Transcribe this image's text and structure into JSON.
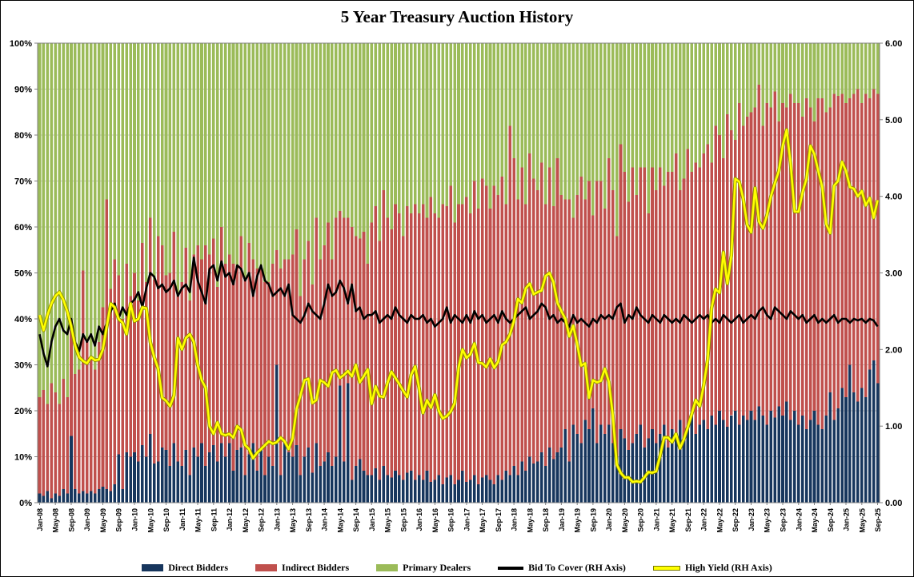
{
  "chart_data": {
    "type": "bar",
    "subtype": "stacked-100-bar-with-lines",
    "title": "5 Year Treasury Auction History",
    "grid": {
      "horizontal": true,
      "color": "#c4c4c4"
    },
    "plot_border_color": "#808080",
    "left_axis": {
      "min": 0,
      "max": 100,
      "tick_step": 10,
      "format": "percent",
      "tick_labels": [
        "0%",
        "10%",
        "20%",
        "30%",
        "40%",
        "50%",
        "60%",
        "70%",
        "80%",
        "90%",
        "100%"
      ]
    },
    "right_axis": {
      "min": 0,
      "max": 6,
      "tick_step": 1,
      "format": "2dp",
      "tick_labels": [
        "0.00",
        "1.00",
        "2.00",
        "3.00",
        "4.00",
        "5.00",
        "6.00"
      ]
    },
    "x_axis": {
      "months_count": 213,
      "first_month": "Jan-08",
      "last_month": "Sep-25",
      "tick_every": 4,
      "tick_labels": [
        "Jan-08",
        "May-08",
        "Sep-08",
        "Jan-09",
        "May-09",
        "Sep-09",
        "Jan-10",
        "May-10",
        "Sep-10",
        "Jan-11",
        "May-11",
        "Sep-11",
        "Jan-12",
        "May-12",
        "Sep-12",
        "Jan-13",
        "May-13",
        "Sep-13",
        "Jan-14",
        "May-14",
        "Sep-14",
        "Jan-15",
        "May-15",
        "Sep-15",
        "Jan-16",
        "May-16",
        "Sep-16",
        "Jan-17",
        "May-17",
        "Sep-17",
        "Jan-18",
        "May-18",
        "Sep-18",
        "Jan-19",
        "May-19",
        "Sep-19",
        "Jan-20",
        "May-20",
        "Sep-20",
        "Jan-21",
        "May-21",
        "Sep-21",
        "Jan-22",
        "May-22",
        "Sep-22",
        "Jan-23",
        "May-23",
        "Sep-23",
        "Jan-24",
        "May-24",
        "Sep-24",
        "Jan-25",
        "May-25",
        "Sep-25"
      ]
    },
    "stack_total_percent": 100,
    "series": [
      {
        "name": "Direct Bidders",
        "type": "bar",
        "axis": "left",
        "color": "#17365D",
        "values": [
          2,
          1.5,
          2.5,
          1,
          2,
          1.5,
          3,
          2,
          14.5,
          3,
          2,
          2.5,
          2,
          2.5,
          2,
          3,
          3.5,
          3,
          2.5,
          4,
          10.5,
          3,
          11,
          10,
          11,
          9,
          12.5,
          10,
          15,
          8.5,
          9,
          12,
          11.5,
          8,
          13,
          9,
          8,
          11.5,
          6,
          12,
          10,
          13,
          8,
          11,
          12.5,
          9,
          13,
          10,
          13,
          7,
          11.5,
          12,
          6,
          10.5,
          13,
          7,
          12,
          6,
          10,
          8,
          30,
          6,
          13,
          11,
          10,
          12.5,
          6,
          10,
          12,
          6.5,
          13,
          8,
          9,
          11,
          8,
          10,
          25.5,
          9,
          26,
          5,
          8,
          9.5,
          7,
          6,
          6,
          7.5,
          5,
          8,
          6,
          5.5,
          7,
          6,
          5,
          6.5,
          7,
          5,
          6,
          5,
          7,
          4.5,
          5,
          6,
          4,
          5.5,
          6,
          4,
          5,
          7,
          4.5,
          5,
          6,
          4,
          5.5,
          6,
          5,
          4,
          6,
          5,
          7,
          6,
          8,
          6,
          9,
          7,
          10,
          8.5,
          9,
          11,
          8,
          12,
          9.5,
          11,
          12,
          16,
          9,
          17,
          15,
          13,
          18,
          16,
          20.5,
          13,
          17,
          15,
          17,
          13,
          10,
          16,
          14,
          11.5,
          13,
          15,
          17,
          12,
          14,
          16,
          13,
          15,
          17,
          12,
          16,
          14,
          18,
          13.5,
          16,
          19,
          15,
          17,
          18,
          16,
          19,
          17,
          20,
          18,
          16.5,
          19,
          20,
          17,
          19,
          18,
          20,
          18,
          21,
          19,
          17,
          20,
          18.5,
          21,
          19,
          22,
          18,
          20,
          17,
          19,
          16,
          18,
          20,
          17,
          16,
          19,
          24,
          18,
          20.5,
          25,
          23,
          30,
          24,
          22,
          25,
          23,
          29,
          31,
          26
        ]
      },
      {
        "name": "Indirect Bidders",
        "type": "bar",
        "axis": "left",
        "color": "#C0504D",
        "values": [
          21,
          23,
          19,
          25,
          22,
          20,
          24,
          21,
          23,
          25,
          27,
          48,
          33,
          29,
          27,
          32,
          39,
          63,
          44,
          49,
          39,
          37,
          41,
          35,
          39,
          35,
          44,
          38,
          47,
          40,
          49,
          44,
          38,
          42,
          46,
          36,
          40,
          44,
          38,
          42,
          46,
          40,
          48,
          43,
          45,
          38,
          47,
          42,
          41,
          45,
          40,
          46,
          43,
          46,
          40,
          44,
          39,
          42,
          38,
          44,
          25,
          45,
          40,
          42,
          44,
          47,
          39,
          43,
          45,
          41,
          49,
          45,
          47,
          50,
          45,
          52,
          38,
          53,
          36,
          55,
          50,
          48,
          52,
          46,
          55,
          57,
          52,
          60,
          56,
          54,
          58,
          57,
          53,
          58,
          56,
          60,
          57,
          60,
          55,
          62,
          58,
          56,
          61,
          59,
          63,
          57,
          60,
          58,
          62,
          58,
          64,
          60,
          65,
          63,
          59,
          65,
          61,
          66,
          58,
          76,
          67,
          60,
          64,
          58,
          66,
          62,
          59,
          63,
          57,
          61,
          55,
          64,
          55,
          50,
          57,
          45,
          52,
          58,
          48,
          54,
          42,
          57,
          53,
          49,
          58,
          55,
          48,
          62,
          58,
          54,
          60,
          52,
          56,
          61,
          49,
          57,
          55,
          58,
          52,
          60,
          56,
          62,
          50,
          57,
          61,
          53,
          59,
          56,
          58,
          62,
          55,
          65,
          60,
          57,
          68,
          62,
          59,
          70,
          63,
          66,
          65,
          68,
          70,
          63,
          70,
          66,
          71,
          62,
          68,
          64,
          71,
          67,
          70,
          65,
          72,
          68,
          63,
          71,
          72,
          66,
          62,
          71,
          68,
          64,
          64,
          58,
          65,
          68,
          62,
          66,
          59,
          59,
          63
        ]
      },
      {
        "name": "Primary Dealers",
        "type": "bar",
        "axis": "left",
        "color": "#9BBB59",
        "values_rule": "100 minus Direct Bidders minus Indirect Bidders (100% stacked remainder)"
      },
      {
        "name": "Bid To Cover (RH Axis)",
        "type": "line",
        "axis": "right",
        "color": "#000000",
        "values": [
          2.2,
          1.95,
          1.78,
          2.1,
          2.3,
          2.4,
          2.25,
          2.2,
          2.4,
          2.1,
          1.98,
          2.2,
          2.1,
          2.2,
          2.05,
          2.3,
          2.2,
          2.35,
          2.5,
          2.6,
          2.4,
          2.55,
          2.45,
          2.6,
          2.65,
          2.75,
          2.55,
          2.8,
          3.0,
          2.95,
          2.8,
          2.85,
          2.75,
          2.8,
          2.9,
          2.7,
          2.8,
          2.85,
          2.75,
          3.2,
          2.9,
          2.75,
          2.6,
          3.05,
          3.1,
          2.9,
          3.15,
          2.95,
          3.0,
          2.85,
          3.1,
          3.05,
          2.9,
          3.0,
          2.7,
          2.95,
          3.1,
          2.9,
          2.85,
          2.7,
          2.75,
          2.8,
          2.7,
          2.85,
          2.45,
          2.4,
          2.35,
          2.45,
          2.6,
          2.5,
          2.45,
          2.4,
          2.6,
          2.85,
          2.7,
          2.75,
          2.9,
          2.8,
          2.6,
          2.85,
          2.5,
          2.55,
          2.4,
          2.45,
          2.45,
          2.5,
          2.35,
          2.4,
          2.45,
          2.4,
          2.55,
          2.45,
          2.4,
          2.35,
          2.45,
          2.4,
          2.4,
          2.45,
          2.35,
          2.4,
          2.3,
          2.35,
          2.4,
          2.55,
          2.35,
          2.45,
          2.4,
          2.35,
          2.45,
          2.35,
          2.5,
          2.4,
          2.45,
          2.35,
          2.4,
          2.45,
          2.35,
          2.5,
          2.4,
          2.35,
          2.4,
          2.45,
          2.5,
          2.55,
          2.4,
          2.45,
          2.5,
          2.6,
          2.55,
          2.4,
          2.45,
          2.35,
          2.4,
          2.35,
          2.3,
          2.45,
          2.35,
          2.4,
          2.35,
          2.3,
          2.4,
          2.35,
          2.45,
          2.4,
          2.45,
          2.4,
          2.55,
          2.6,
          2.35,
          2.45,
          2.4,
          2.55,
          2.45,
          2.4,
          2.35,
          2.45,
          2.4,
          2.35,
          2.45,
          2.4,
          2.35,
          2.4,
          2.35,
          2.45,
          2.4,
          2.35,
          2.4,
          2.45,
          2.4,
          2.45,
          2.35,
          2.4,
          2.35,
          2.45,
          2.4,
          2.35,
          2.4,
          2.45,
          2.35,
          2.4,
          2.45,
          2.4,
          2.5,
          2.55,
          2.45,
          2.4,
          2.55,
          2.5,
          2.45,
          2.4,
          2.5,
          2.45,
          2.4,
          2.45,
          2.35,
          2.4,
          2.45,
          2.35,
          2.4,
          2.35,
          2.4,
          2.45,
          2.35,
          2.4,
          2.4,
          2.35,
          2.4,
          2.38,
          2.4,
          2.35,
          2.4,
          2.38,
          2.3
        ]
      },
      {
        "name": "High Yield (RH Axis)",
        "type": "line",
        "axis": "right",
        "color": "#FFFF00",
        "values": [
          2.45,
          2.25,
          2.45,
          2.6,
          2.7,
          2.75,
          2.65,
          2.5,
          2.3,
          2.05,
          1.9,
          1.85,
          1.82,
          1.9,
          1.86,
          1.87,
          2.0,
          2.3,
          2.6,
          2.55,
          2.4,
          2.35,
          2.2,
          2.6,
          2.37,
          2.4,
          2.55,
          2.54,
          2.1,
          1.9,
          1.75,
          1.37,
          1.33,
          1.26,
          1.4,
          2.15,
          2.0,
          2.15,
          2.2,
          2.1,
          1.8,
          1.6,
          1.5,
          1.0,
          0.9,
          1.05,
          0.9,
          0.88,
          0.9,
          0.85,
          1.0,
          0.95,
          0.75,
          0.7,
          0.58,
          0.65,
          0.7,
          0.75,
          0.8,
          0.77,
          0.79,
          0.85,
          0.8,
          0.7,
          0.84,
          1.22,
          1.4,
          1.6,
          1.62,
          1.3,
          1.34,
          1.6,
          1.57,
          1.52,
          1.7,
          1.73,
          1.63,
          1.67,
          1.72,
          1.65,
          1.8,
          1.57,
          1.65,
          1.74,
          1.29,
          1.52,
          1.39,
          1.38,
          1.56,
          1.71,
          1.63,
          1.55,
          1.46,
          1.38,
          1.67,
          1.78,
          1.5,
          1.17,
          1.34,
          1.24,
          1.41,
          1.2,
          1.1,
          1.13,
          1.19,
          1.3,
          1.76,
          2.0,
          1.89,
          1.94,
          2.08,
          1.83,
          1.82,
          1.77,
          1.88,
          1.76,
          1.84,
          2.06,
          2.1,
          2.2,
          2.37,
          2.66,
          2.61,
          2.8,
          2.86,
          2.72,
          2.75,
          2.77,
          2.96,
          3.0,
          2.88,
          2.61,
          2.5,
          2.4,
          2.17,
          2.31,
          2.07,
          1.79,
          1.82,
          1.37,
          1.6,
          1.57,
          1.59,
          1.75,
          1.58,
          1.15,
          0.5,
          0.39,
          0.33,
          0.33,
          0.27,
          0.28,
          0.27,
          0.33,
          0.4,
          0.39,
          0.41,
          0.62,
          0.85,
          0.85,
          0.79,
          0.9,
          0.71,
          0.83,
          0.99,
          1.16,
          1.34,
          1.26,
          1.53,
          1.87,
          2.54,
          2.79,
          2.74,
          3.27,
          2.86,
          3.23,
          4.23,
          4.19,
          3.97,
          3.63,
          3.53,
          4.11,
          3.67,
          3.58,
          3.75,
          4.0,
          4.17,
          4.33,
          4.66,
          4.87,
          4.42,
          3.8,
          3.8,
          4.05,
          4.23,
          4.66,
          4.55,
          4.33,
          4.12,
          3.64,
          3.52,
          4.14,
          4.2,
          4.45,
          4.33,
          4.12,
          4.1,
          4.0,
          4.07,
          3.88,
          3.98,
          3.72,
          3.95
        ]
      }
    ],
    "legend": {
      "position": "bottom",
      "entries": [
        {
          "label": "Direct Bidders",
          "swatch": "box",
          "color": "#17365D"
        },
        {
          "label": "Indirect Bidders",
          "swatch": "box",
          "color": "#C0504D"
        },
        {
          "label": "Primary Dealers",
          "swatch": "box",
          "color": "#9BBB59"
        },
        {
          "label": "Bid To Cover (RH Axis)",
          "swatch": "line",
          "color": "#000000"
        },
        {
          "label": "High Yield (RH Axis)",
          "swatch": "line",
          "color": "#FFFF00",
          "edge_color": "#7a7a00"
        }
      ]
    }
  }
}
